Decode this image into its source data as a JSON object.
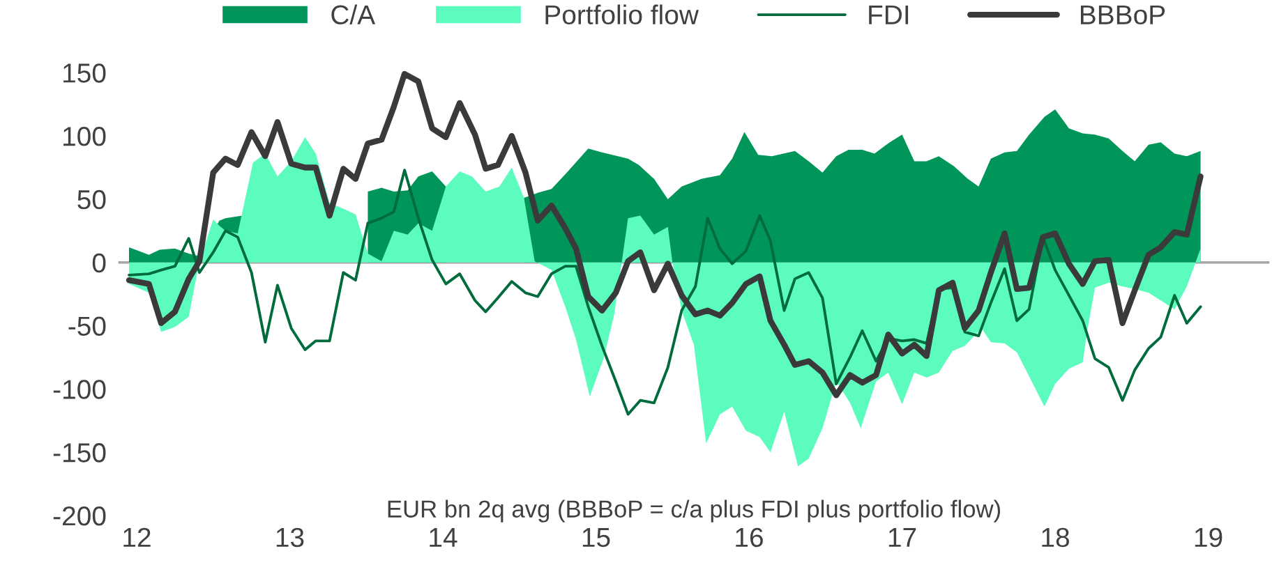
{
  "chart_data": {
    "type": "area",
    "annotations": [
      "EUR bn 2q avg (BBBoP = c/a plus FDI plus portfolio flow)"
    ],
    "xlim": [
      11.88,
      19.4
    ],
    "xticks": [
      12,
      13,
      14,
      15,
      16,
      17,
      18,
      19
    ],
    "ylim": [
      -200,
      150
    ],
    "yticks": [
      -200,
      -150,
      -100,
      -50,
      0,
      50,
      100,
      150
    ],
    "grid": false,
    "legend": "top",
    "ref_lines": [
      {
        "axis": "y",
        "value": 0,
        "color": "#a6a6a6"
      }
    ],
    "series": [
      {
        "name": "C/A",
        "color": "#00965a",
        "x": [
          11.95,
          12.08,
          12.15,
          12.25,
          12.34,
          12.41,
          12.54,
          12.58,
          12.69,
          12.8,
          12.92,
          13.05,
          13.17,
          13.26,
          13.4,
          13.51,
          13.6,
          13.68,
          13.77,
          13.84,
          13.93,
          14.02,
          14.15,
          14.3,
          14.45,
          14.53,
          14.62,
          14.71,
          14.81,
          14.95,
          15.04,
          15.21,
          15.28,
          15.38,
          15.47,
          15.56,
          15.69,
          15.81,
          15.89,
          15.97,
          16.06,
          16.15,
          16.3,
          16.39,
          16.48,
          16.57,
          16.65,
          16.74,
          16.82,
          16.92,
          17.0,
          17.08,
          17.16,
          17.24,
          17.34,
          17.43,
          17.5,
          17.58,
          17.67,
          17.75,
          17.83,
          17.93,
          18.0,
          18.09,
          18.18,
          18.26,
          18.35,
          18.44,
          18.52,
          18.61,
          18.69,
          18.78,
          18.86,
          18.95
        ],
        "values": [
          12,
          6,
          10,
          11,
          7,
          5,
          33,
          35,
          37,
          null,
          null,
          null,
          null,
          null,
          null,
          56,
          59,
          56,
          57,
          68,
          72,
          60,
          null,
          null,
          null,
          51,
          55,
          58,
          71,
          90,
          87,
          82,
          77,
          66,
          50,
          60,
          66,
          69,
          82,
          103,
          85,
          84,
          88,
          80,
          71,
          84,
          89,
          89,
          86,
          95,
          101,
          80,
          80,
          84,
          76,
          66,
          60,
          82,
          87,
          88,
          101,
          115,
          121,
          106,
          102,
          101,
          98,
          88,
          80,
          93,
          95,
          86,
          84,
          88
        ]
      },
      {
        "name": "Portfolio flow",
        "color": "#5cfcbf",
        "x": [
          11.95,
          12.08,
          12.16,
          12.25,
          12.34,
          12.41,
          12.5,
          12.54,
          12.58,
          12.66,
          12.76,
          12.84,
          12.92,
          13.01,
          13.1,
          13.17,
          13.26,
          13.36,
          13.43,
          13.51,
          13.6,
          13.68,
          13.77,
          13.84,
          13.93,
          14.02,
          14.11,
          14.19,
          14.28,
          14.37,
          14.45,
          14.53,
          14.6,
          14.71,
          14.8,
          14.87,
          14.96,
          15.05,
          15.12,
          15.21,
          15.29,
          15.38,
          15.47,
          15.5,
          15.56,
          15.64,
          15.72,
          15.81,
          15.89,
          15.98,
          16.07,
          16.14,
          16.23,
          16.32,
          16.39,
          16.48,
          16.57,
          16.66,
          16.73,
          16.83,
          16.91,
          17.0,
          17.08,
          17.16,
          17.24,
          17.33,
          17.41,
          17.52,
          17.58,
          17.67,
          17.75,
          17.83,
          17.93,
          18.0,
          18.09,
          18.18,
          18.21,
          18.26,
          18.35,
          18.44,
          18.52,
          18.61,
          18.69,
          18.78,
          18.86,
          18.95
        ],
        "values": [
          -17,
          -24,
          -55,
          -51,
          -43,
          1,
          34,
          29,
          25,
          23,
          79,
          86,
          68,
          80,
          99,
          86,
          47,
          42,
          38,
          7,
          1,
          25,
          22,
          31,
          25,
          60,
          72,
          68,
          56,
          60,
          75,
          51,
          1,
          -6,
          -35,
          -61,
          -106,
          -76,
          -41,
          35,
          37,
          22,
          28,
          0,
          -38,
          -65,
          -143,
          -120,
          -114,
          -133,
          -138,
          -150,
          -118,
          -161,
          -155,
          -131,
          -94,
          -111,
          -131,
          -94,
          -87,
          -112,
          -87,
          -91,
          -87,
          -70,
          -66,
          -52,
          -63,
          -64,
          -71,
          -90,
          -114,
          -96,
          -84,
          -79,
          -54,
          -20,
          -16,
          -19,
          -21,
          -24,
          -30,
          -37,
          -19,
          11
        ]
      },
      {
        "name": "FDI",
        "type": "line",
        "color": "#006b3c",
        "line_style": "solid",
        "x": [
          11.95,
          12.08,
          12.16,
          12.25,
          12.34,
          12.41,
          12.5,
          12.58,
          12.66,
          12.75,
          12.84,
          12.92,
          13.01,
          13.1,
          13.17,
          13.26,
          13.35,
          13.43,
          13.51,
          13.6,
          13.68,
          13.75,
          13.84,
          13.93,
          14.02,
          14.11,
          14.21,
          14.28,
          14.36,
          14.45,
          14.54,
          14.62,
          14.71,
          14.8,
          14.87,
          14.95,
          15.04,
          15.13,
          15.21,
          15.29,
          15.38,
          15.47,
          15.56,
          15.65,
          15.73,
          15.81,
          15.89,
          15.98,
          16.07,
          16.14,
          16.23,
          16.3,
          16.39,
          16.48,
          16.57,
          16.66,
          16.74,
          16.83,
          16.91,
          17.0,
          17.08,
          17.16,
          17.24,
          17.33,
          17.41,
          17.5,
          17.58,
          17.67,
          17.75,
          17.83,
          17.92,
          18.0,
          18.09,
          18.18,
          18.26,
          18.35,
          18.44,
          18.52,
          18.61,
          18.69,
          18.78,
          18.86,
          18.95
        ],
        "values": [
          -10,
          -9,
          -6,
          -3,
          19,
          -8,
          8,
          25,
          20,
          -8,
          -63,
          -18,
          -52,
          -69,
          -62,
          -62,
          -8,
          -14,
          31,
          35,
          40,
          73,
          35,
          2,
          -17,
          -9,
          -30,
          -39,
          -28,
          -15,
          -24,
          -27,
          -9,
          -3,
          -3,
          -35,
          -66,
          -94,
          -120,
          -109,
          -111,
          -83,
          -38,
          -19,
          35,
          11,
          -1,
          9,
          37,
          17,
          -38,
          -13,
          -8,
          -28,
          -96,
          -75,
          -54,
          -78,
          -60,
          -62,
          -61,
          -64,
          -21,
          -20,
          -55,
          -58,
          -32,
          -5,
          -46,
          -37,
          20,
          -6,
          -26,
          -46,
          -76,
          -83,
          -109,
          -85,
          -68,
          -59,
          -26,
          -48,
          -35
        ]
      },
      {
        "name": "BBBoP",
        "type": "line",
        "color": "#3a3a3a",
        "line_style": "solid",
        "x": [
          11.95,
          12.08,
          12.16,
          12.25,
          12.34,
          12.41,
          12.5,
          12.58,
          12.66,
          12.75,
          12.84,
          12.92,
          13.01,
          13.1,
          13.17,
          13.26,
          13.35,
          13.43,
          13.51,
          13.6,
          13.68,
          13.75,
          13.84,
          13.93,
          14.02,
          14.11,
          14.21,
          14.28,
          14.36,
          14.45,
          14.54,
          14.62,
          14.71,
          14.8,
          14.87,
          14.95,
          15.04,
          15.13,
          15.21,
          15.29,
          15.38,
          15.47,
          15.56,
          15.65,
          15.73,
          15.81,
          15.89,
          15.98,
          16.07,
          16.14,
          16.23,
          16.3,
          16.39,
          16.48,
          16.57,
          16.66,
          16.74,
          16.83,
          16.91,
          17.0,
          17.08,
          17.16,
          17.24,
          17.33,
          17.41,
          17.5,
          17.58,
          17.67,
          17.75,
          17.83,
          17.92,
          18.0,
          18.09,
          18.18,
          18.26,
          18.35,
          18.44,
          18.52,
          18.61,
          18.69,
          18.78,
          18.86,
          18.95
        ],
        "values": [
          -14,
          -17,
          -48,
          -39,
          -13,
          1,
          71,
          82,
          77,
          103,
          84,
          111,
          78,
          75,
          75,
          37,
          74,
          66,
          94,
          97,
          123,
          149,
          143,
          106,
          99,
          126,
          101,
          74,
          77,
          100,
          71,
          33,
          45,
          27,
          11,
          -27,
          -38,
          -24,
          1,
          8,
          -22,
          -1,
          -26,
          -41,
          -38,
          -42,
          -32,
          -17,
          -11,
          -46,
          -65,
          -81,
          -78,
          -87,
          -105,
          -89,
          -95,
          -89,
          -57,
          -72,
          -65,
          -74,
          -22,
          -16,
          -52,
          -38,
          -8,
          23,
          -21,
          -20,
          20,
          23,
          -1,
          -17,
          1,
          2,
          -48,
          -22,
          6,
          12,
          24,
          22,
          68
        ]
      }
    ]
  }
}
